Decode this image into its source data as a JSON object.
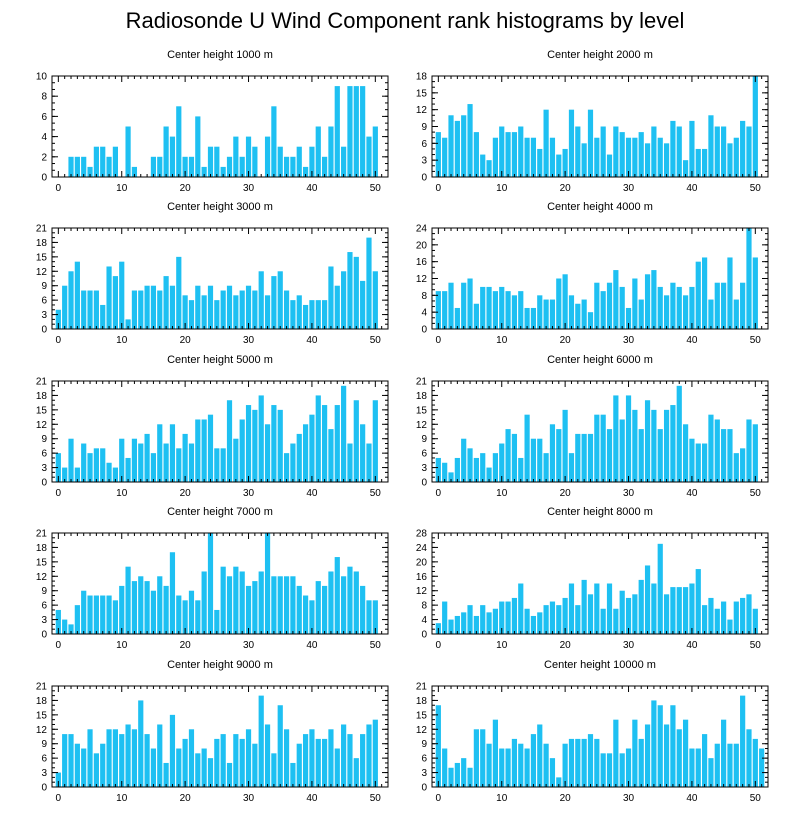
{
  "title": "Radiosonde U Wind Component rank histograms by level",
  "colors": {
    "bar": "#1EC0F2",
    "axis": "#000000",
    "background": "#ffffff"
  },
  "xlim": [
    -1,
    52
  ],
  "xticks": [
    0,
    10,
    20,
    30,
    40,
    50
  ],
  "chart_data": [
    {
      "type": "bar",
      "title": "Center height 1000 m",
      "ylim": [
        0,
        10
      ],
      "yticks": [
        0,
        2,
        4,
        6,
        8,
        10
      ],
      "values": [
        0,
        0,
        2,
        2,
        2,
        1,
        3,
        3,
        2,
        3,
        0,
        5,
        1,
        0,
        0,
        2,
        2,
        5,
        4,
        7,
        2,
        2,
        6,
        1,
        3,
        3,
        1,
        2,
        4,
        2,
        4,
        3,
        0,
        4,
        7,
        3,
        2,
        2,
        3,
        1,
        3,
        5,
        2,
        5,
        9,
        3,
        9,
        9,
        9,
        4,
        5
      ]
    },
    {
      "type": "bar",
      "title": "Center height 2000 m",
      "ylim": [
        0,
        18
      ],
      "yticks": [
        0,
        3,
        6,
        9,
        12,
        15,
        18
      ],
      "values": [
        8,
        7,
        11,
        10,
        11,
        13,
        8,
        4,
        3,
        7,
        9,
        8,
        8,
        9,
        7,
        7,
        5,
        12,
        7,
        4,
        5,
        12,
        9,
        6,
        12,
        7,
        9,
        4,
        9,
        8,
        7,
        7,
        8,
        6,
        9,
        7,
        6,
        10,
        9,
        3,
        10,
        5,
        5,
        11,
        9,
        9,
        6,
        7,
        10,
        9,
        18
      ]
    },
    {
      "type": "bar",
      "title": "Center height 3000 m",
      "ylim": [
        0,
        21
      ],
      "yticks": [
        0,
        3,
        6,
        9,
        12,
        15,
        18,
        21
      ],
      "values": [
        4,
        9,
        12,
        14,
        8,
        8,
        8,
        5,
        13,
        11,
        14,
        2,
        8,
        8,
        9,
        9,
        8,
        11,
        9,
        15,
        7,
        6,
        9,
        7,
        9,
        6,
        8,
        9,
        7,
        8,
        9,
        8,
        12,
        7,
        11,
        12,
        8,
        6,
        7,
        5,
        6,
        6,
        6,
        13,
        9,
        12,
        16,
        15,
        10,
        19,
        12
      ]
    },
    {
      "type": "bar",
      "title": "Center height 4000 m",
      "ylim": [
        0,
        24
      ],
      "yticks": [
        0,
        4,
        8,
        12,
        16,
        20,
        24
      ],
      "values": [
        9,
        9,
        11,
        5,
        11,
        12,
        6,
        10,
        10,
        9,
        10,
        9,
        8,
        9,
        5,
        5,
        8,
        7,
        7,
        12,
        13,
        8,
        6,
        7,
        4,
        11,
        9,
        11,
        14,
        10,
        5,
        12,
        7,
        13,
        14,
        10,
        8,
        11,
        10,
        8,
        10,
        16,
        17,
        7,
        11,
        11,
        17,
        7,
        11,
        24,
        17
      ]
    },
    {
      "type": "bar",
      "title": "Center height 5000 m",
      "ylim": [
        0,
        21
      ],
      "yticks": [
        0,
        3,
        6,
        9,
        12,
        15,
        18,
        21
      ],
      "values": [
        6,
        3,
        9,
        3,
        8,
        6,
        7,
        7,
        4,
        3,
        9,
        5,
        9,
        8,
        10,
        6,
        12,
        8,
        12,
        7,
        10,
        8,
        13,
        13,
        14,
        7,
        7,
        17,
        9,
        13,
        16,
        15,
        18,
        12,
        16,
        15,
        6,
        8,
        10,
        12,
        14,
        18,
        16,
        11,
        16,
        20,
        8,
        17,
        12,
        8,
        17
      ]
    },
    {
      "type": "bar",
      "title": "Center height 6000 m",
      "ylim": [
        0,
        21
      ],
      "yticks": [
        0,
        3,
        6,
        9,
        12,
        15,
        18,
        21
      ],
      "values": [
        5,
        4,
        2,
        5,
        9,
        7,
        5,
        6,
        3,
        6,
        8,
        11,
        10,
        5,
        14,
        9,
        9,
        6,
        12,
        11,
        15,
        6,
        10,
        10,
        10,
        14,
        14,
        11,
        18,
        13,
        18,
        15,
        11,
        17,
        15,
        11,
        15,
        16,
        20,
        12,
        9,
        8,
        8,
        14,
        13,
        11,
        11,
        6,
        7,
        13,
        12
      ]
    },
    {
      "type": "bar",
      "title": "Center height 7000 m",
      "ylim": [
        0,
        21
      ],
      "yticks": [
        0,
        3,
        6,
        9,
        12,
        15,
        18,
        21
      ],
      "values": [
        5,
        3,
        2,
        6,
        9,
        8,
        8,
        8,
        8,
        7,
        10,
        14,
        11,
        12,
        11,
        9,
        12,
        10,
        17,
        8,
        7,
        9,
        7,
        13,
        21,
        5,
        14,
        12,
        14,
        13,
        10,
        11,
        13,
        21,
        12,
        12,
        12,
        12,
        10,
        8,
        7,
        11,
        10,
        13,
        16,
        12,
        14,
        13,
        10,
        7,
        7
      ]
    },
    {
      "type": "bar",
      "title": "Center height 8000 m",
      "ylim": [
        0,
        28
      ],
      "yticks": [
        0,
        4,
        8,
        12,
        16,
        20,
        24,
        28
      ],
      "values": [
        3,
        9,
        4,
        5,
        6,
        8,
        5,
        8,
        6,
        7,
        9,
        9,
        10,
        14,
        7,
        5,
        6,
        8,
        9,
        8,
        10,
        14,
        8,
        15,
        11,
        14,
        7,
        14,
        7,
        12,
        10,
        11,
        15,
        19,
        14,
        25,
        11,
        13,
        13,
        13,
        14,
        18,
        8,
        10,
        7,
        9,
        4,
        9,
        10,
        11,
        7
      ]
    },
    {
      "type": "bar",
      "title": "Center height 9000 m",
      "ylim": [
        0,
        21
      ],
      "yticks": [
        0,
        3,
        6,
        9,
        12,
        15,
        18,
        21
      ],
      "values": [
        3,
        11,
        11,
        9,
        8,
        12,
        7,
        9,
        12,
        12,
        11,
        13,
        12,
        18,
        11,
        8,
        13,
        5,
        15,
        8,
        10,
        12,
        7,
        8,
        6,
        10,
        11,
        5,
        11,
        10,
        12,
        9,
        19,
        13,
        7,
        17,
        12,
        5,
        9,
        11,
        12,
        10,
        10,
        12,
        8,
        13,
        11,
        6,
        11,
        13,
        14
      ]
    },
    {
      "type": "bar",
      "title": "Center height 10000 m",
      "ylim": [
        0,
        21
      ],
      "yticks": [
        0,
        3,
        6,
        9,
        12,
        15,
        18,
        21
      ],
      "values": [
        17,
        8,
        4,
        5,
        6,
        4,
        12,
        12,
        9,
        14,
        8,
        8,
        10,
        9,
        8,
        11,
        13,
        9,
        6,
        2,
        9,
        10,
        10,
        10,
        11,
        10,
        7,
        7,
        14,
        7,
        8,
        14,
        10,
        13,
        18,
        17,
        13,
        17,
        12,
        14,
        8,
        8,
        11,
        6,
        9,
        14,
        9,
        9,
        19,
        12,
        10,
        8
      ]
    }
  ]
}
